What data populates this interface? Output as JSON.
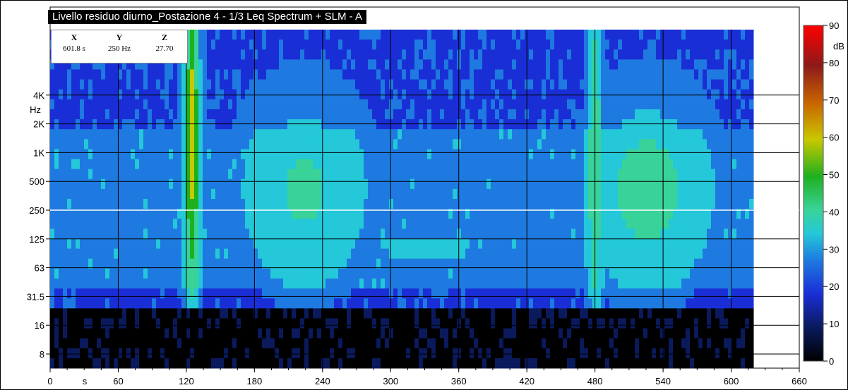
{
  "window": {
    "title": "Livello residuo diurno_Postazione 4 - 1/3 Leq Spectrum + SLM - A"
  },
  "cursor_readout": {
    "x_header": "X",
    "y_header": "Y",
    "z_header": "Z",
    "x_value": "601.8 s",
    "y_value": "250 Hz",
    "z_value": "27.70"
  },
  "colors": {
    "background": "#ffffff",
    "plot_grid": "#000000",
    "cursor_line": "#ffffff",
    "colormap": [
      "#000000",
      "#0a1a5c",
      "#1a2ed6",
      "#1e7ae0",
      "#24c8d8",
      "#39d39a",
      "#1fb01f",
      "#c8c800",
      "#c86400",
      "#8c1a1a",
      "#ff0000"
    ]
  },
  "chart_data": {
    "type": "heatmap",
    "title": "Livello residuo diurno_Postazione 4 - 1/3 Leq Spectrum + SLM - A",
    "xlabel": "s",
    "ylabel": "Hz",
    "zlabel": "dB",
    "xlim": [
      0,
      660
    ],
    "data_x_extent": [
      0,
      601.8
    ],
    "x_ticks": [
      "0",
      "60",
      "120",
      "180",
      "240",
      "300",
      "360",
      "420",
      "480",
      "540",
      "600",
      "660"
    ],
    "y_ticks": [
      "8",
      "16",
      "31.5",
      "63",
      "125",
      "250",
      "500",
      "1K",
      "2K",
      "4K"
    ],
    "y_scale": "log",
    "y_unit_label": "Hz",
    "z_ticks": [
      "0",
      "10",
      "20",
      "30",
      "40",
      "50",
      "60",
      "70",
      "80",
      "90"
    ],
    "zlim": [
      0,
      90
    ],
    "cursor": {
      "x": 601.8,
      "y": 250,
      "z": 27.7
    },
    "level_summary": [
      {
        "band": "8-25 Hz",
        "level": 2
      },
      {
        "band": "31.5 Hz",
        "level": 20
      },
      {
        "band": "63-1K Hz",
        "level": 28
      },
      {
        "band": "2K-10K Hz",
        "level": 20
      }
    ],
    "events": [
      {
        "time": 123,
        "band": "2K",
        "level": 62
      },
      {
        "time": 222,
        "band": "250-500",
        "level": 42
      },
      {
        "time": 330,
        "band": "125",
        "level": 40
      },
      {
        "time": 478,
        "band": "1K",
        "level": 48
      },
      {
        "time": 525,
        "band": "250-500",
        "level": 45
      }
    ],
    "grid": true,
    "legend": "right colorbar"
  }
}
